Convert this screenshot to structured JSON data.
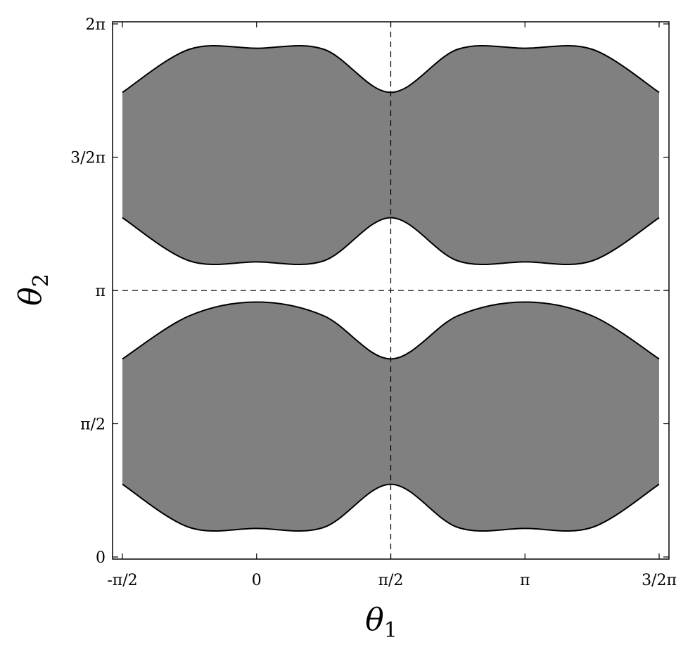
{
  "chart_data": {
    "type": "area",
    "x_label_main": "θ",
    "x_label_sub": "1",
    "y_label_main": "θ",
    "y_label_sub": "2",
    "xlim": [
      -1.5708,
      4.7124
    ],
    "ylim": [
      0,
      6.2832
    ],
    "x_ticks": [
      {
        "value": -1.5708,
        "label": "-π/2"
      },
      {
        "value": 0,
        "label": "0"
      },
      {
        "value": 1.5708,
        "label": "π/2"
      },
      {
        "value": 3.1416,
        "label": "π"
      },
      {
        "value": 4.7124,
        "label": "3/2π"
      }
    ],
    "y_ticks": [
      {
        "value": 0,
        "label": "0"
      },
      {
        "value": 1.5708,
        "label": "π/2"
      },
      {
        "value": 3.1416,
        "label": "π"
      },
      {
        "value": 4.7124,
        "label": "3/2π"
      },
      {
        "value": 6.2832,
        "label": "2π"
      }
    ],
    "reference_lines": [
      {
        "orientation": "vertical",
        "value": 1.5708,
        "style": "dashed"
      },
      {
        "orientation": "horizontal",
        "value": 3.1416,
        "style": "dashed"
      }
    ],
    "fill_color": "#808080",
    "edge_color": "#000000",
    "regions": [
      {
        "name": "lower band",
        "x": [
          -1.5708,
          -0.7854,
          0,
          0.7854,
          1.5708,
          2.3562,
          3.1416,
          3.927,
          4.7124
        ],
        "upper": [
          2.3345,
          2.8436,
          3.0051,
          2.8436,
          2.3345,
          2.8436,
          3.0051,
          2.8436,
          2.3345
        ],
        "lower": [
          0.8571,
          0.348,
          0.3365,
          0.348,
          0.8571,
          0.348,
          0.3365,
          0.348,
          0.8571
        ]
      },
      {
        "name": "upper band",
        "x": [
          -1.5708,
          -0.7854,
          0,
          0.7854,
          1.5708,
          2.3562,
          3.1416,
          3.927,
          4.7124
        ],
        "upper": [
          5.476,
          5.9851,
          5.9966,
          5.9851,
          5.476,
          5.9851,
          5.9966,
          5.9851,
          5.476
        ],
        "lower": [
          3.9987,
          3.4896,
          3.4781,
          3.4896,
          3.9987,
          3.4896,
          3.4781,
          3.4896,
          3.9987
        ]
      }
    ]
  }
}
